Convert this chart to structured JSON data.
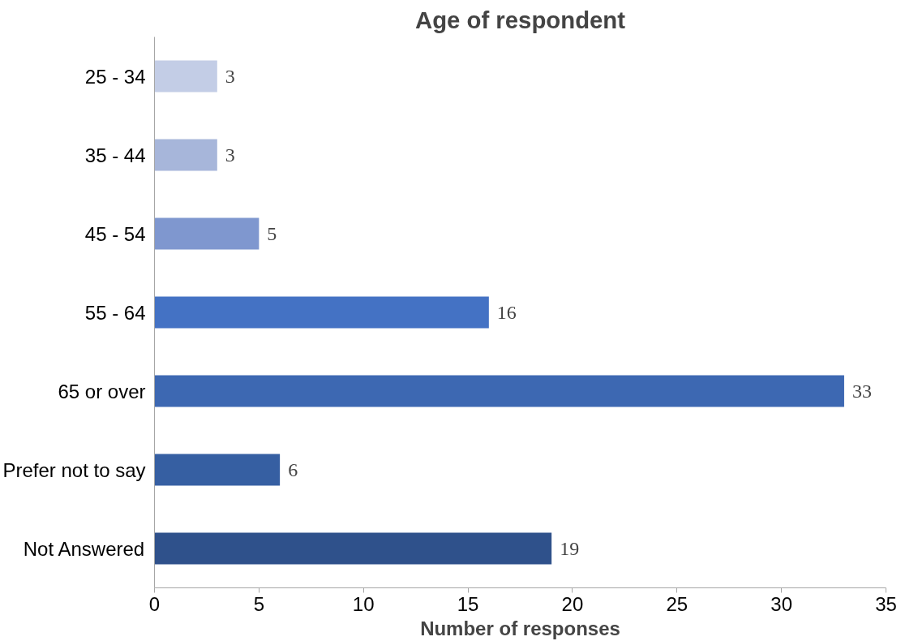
{
  "chart_data": {
    "type": "bar",
    "orientation": "horizontal",
    "title": "Age of respondent",
    "xlabel": "Number of responses",
    "categories": [
      "25 - 34",
      "35 - 44",
      "45 - 54",
      "55 - 64",
      "65 or over",
      "Prefer not to say",
      "Not Answered"
    ],
    "values": [
      3,
      3,
      5,
      16,
      33,
      6,
      19
    ],
    "colors": [
      "#c3cde6",
      "#a7b6da",
      "#7f97cf",
      "#4472c4",
      "#3d68b2",
      "#365fa2",
      "#2f518b"
    ],
    "xlim": [
      0,
      35
    ],
    "xticks": [
      0,
      5,
      10,
      15,
      20,
      25,
      30,
      35
    ],
    "grid": false,
    "data_labels": true
  }
}
